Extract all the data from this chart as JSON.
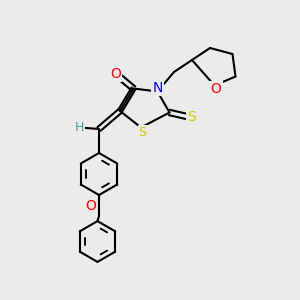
{
  "background_color": "#ebebeb",
  "bond_color": "#000000",
  "atom_colors": {
    "O": "#ff0000",
    "N": "#0000ff",
    "S": "#cccc00",
    "H": "#40a0a0"
  },
  "line_width": 1.5,
  "font_size": 9
}
